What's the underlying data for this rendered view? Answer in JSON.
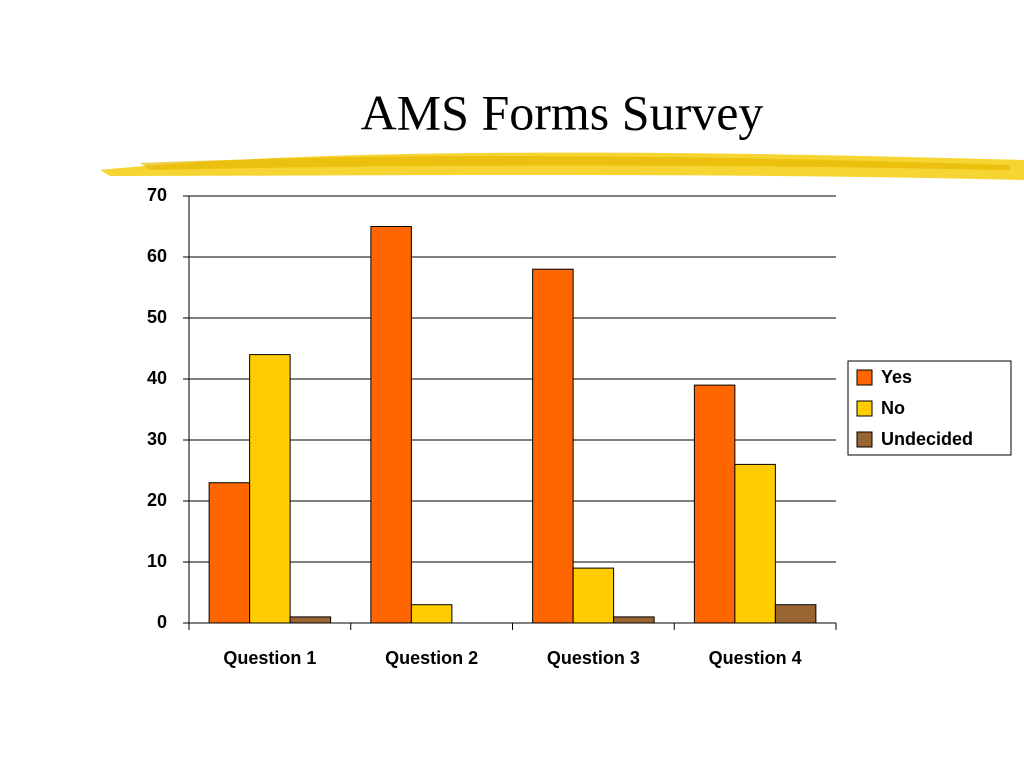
{
  "chart_data": {
    "type": "bar",
    "title": "AMS Forms Survey",
    "categories": [
      "Question 1",
      "Question 2",
      "Question 3",
      "Question 4"
    ],
    "series": [
      {
        "name": "Yes",
        "color": "#ff6600",
        "values": [
          23,
          65,
          58,
          39
        ]
      },
      {
        "name": "No",
        "color": "#ffcc00",
        "values": [
          44,
          3,
          9,
          26
        ]
      },
      {
        "name": "Undecided",
        "color": "#996633",
        "values": [
          1,
          0,
          1,
          3
        ]
      }
    ],
    "ylim": [
      0,
      70
    ],
    "yticks": [
      0,
      10,
      20,
      30,
      40,
      50,
      60,
      70
    ],
    "grid": true,
    "legend": "right"
  }
}
